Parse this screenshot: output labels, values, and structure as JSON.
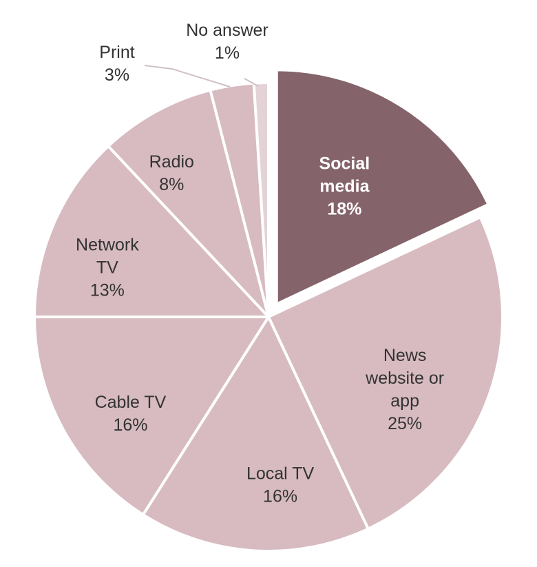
{
  "chart_data": {
    "type": "pie",
    "start_angle_deg": 0,
    "direction": "clockwise",
    "exploded": "Social media",
    "colors": {
      "default": "#d7bbc0",
      "highlight": "#84636a",
      "small": "#e3d3d6",
      "border": "#ffffff"
    },
    "slices": [
      {
        "name": "Social media",
        "value": 18,
        "label_lines": [
          "Social",
          "media",
          "18%"
        ]
      },
      {
        "name": "News website or app",
        "value": 25,
        "label_lines": [
          "News",
          "website or",
          "app",
          "25%"
        ]
      },
      {
        "name": "Local TV",
        "value": 16,
        "label_lines": [
          "Local TV",
          "16%"
        ]
      },
      {
        "name": "Cable TV",
        "value": 16,
        "label_lines": [
          "Cable TV",
          "16%"
        ]
      },
      {
        "name": "Network TV",
        "value": 13,
        "label_lines": [
          "Network",
          "TV",
          "13%"
        ]
      },
      {
        "name": "Radio",
        "value": 8,
        "label_lines": [
          "Radio",
          "8%"
        ]
      },
      {
        "name": "Print",
        "value": 3,
        "label_lines": [
          "Print",
          "3%"
        ]
      },
      {
        "name": "No answer",
        "value": 1,
        "label_lines": [
          "No answer",
          "1%"
        ]
      }
    ]
  }
}
